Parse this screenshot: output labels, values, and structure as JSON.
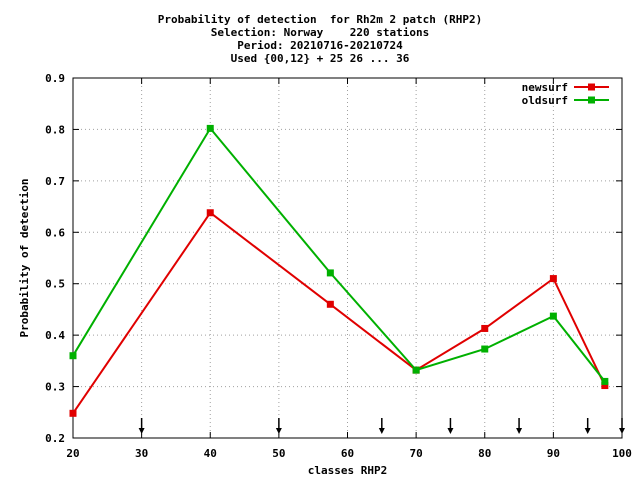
{
  "chart_data": {
    "type": "line",
    "title_lines": [
      "Probability of detection  for Rh2m 2 patch (RHP2)",
      "Selection: Norway    220 stations",
      "Period: 20210716-20210724",
      "Used {00,12} + 25 26 ... 36"
    ],
    "xlabel": "classes RHP2",
    "ylabel": "Probability of detection",
    "xlim": [
      20,
      100
    ],
    "ylim": [
      0.2,
      0.9
    ],
    "xticks": [
      20,
      30,
      40,
      50,
      60,
      70,
      80,
      90,
      100
    ],
    "xtick_labels": [
      "20",
      "30",
      "40",
      "50",
      "60",
      "70",
      "80",
      "90",
      "100"
    ],
    "yticks": [
      0.2,
      0.3,
      0.4,
      0.5,
      0.6,
      0.7,
      0.8,
      0.9
    ],
    "ytick_labels": [
      "0.2",
      "0.3",
      "0.4",
      "0.5",
      "0.6",
      "0.7",
      "0.8",
      "0.9"
    ],
    "grid": true,
    "legend_position": "top-right",
    "arrow_x": [
      30,
      50,
      65,
      75,
      85,
      95,
      100
    ],
    "series": [
      {
        "name": "newsurf",
        "color": "#e00000",
        "x": [
          20,
          40,
          57.5,
          70,
          80,
          90,
          97.5
        ],
        "y": [
          0.248,
          0.638,
          0.46,
          0.332,
          0.413,
          0.51,
          0.302
        ]
      },
      {
        "name": "oldsurf",
        "color": "#00b000",
        "x": [
          20,
          40,
          57.5,
          70,
          80,
          90,
          97.5
        ],
        "y": [
          0.36,
          0.802,
          0.521,
          0.332,
          0.373,
          0.437,
          0.31
        ]
      }
    ]
  }
}
